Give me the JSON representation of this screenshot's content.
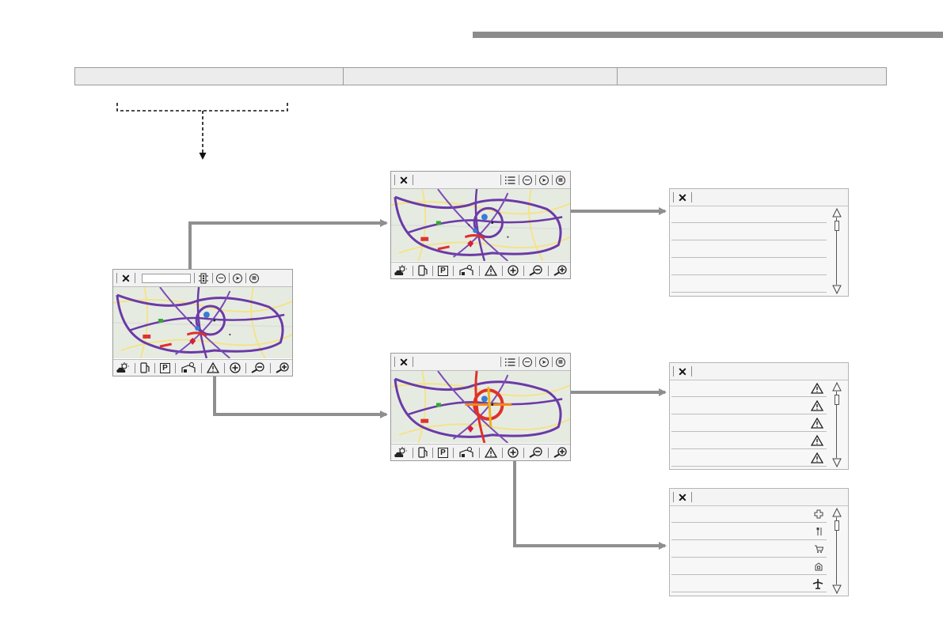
{
  "header": {
    "columns": [
      "",
      "",
      ""
    ]
  },
  "colors": {
    "connector": "#8f8f8f",
    "map_road": "#6b3aa6",
    "traffic": "#e0302a"
  },
  "main_screen": {
    "toolbar_icons": [
      "close-icon",
      "search-field",
      "traffic-light-icon",
      "route-icon",
      "compass-icon",
      "settings-icon"
    ],
    "bottom_icons": [
      "weather-icon",
      "fuel-icon",
      "parking-icon",
      "poi-icon",
      "warning-icon",
      "plus-circle-icon",
      "zoom-out-icon",
      "zoom-in-icon"
    ],
    "parking_label": "P"
  },
  "list_screen": {
    "toolbar_icons": [
      "close-icon",
      "list-icon",
      "route-icon",
      "compass-icon",
      "settings-icon"
    ],
    "parking_label": "P"
  },
  "list_panels": [
    {
      "name": "list-panel-1",
      "rows": [
        "",
        "",
        "",
        "",
        ""
      ],
      "row_icons": []
    },
    {
      "name": "list-panel-2",
      "rows": [
        "",
        "",
        "",
        "",
        ""
      ],
      "row_icons": [
        "warning-icon",
        "warning-icon",
        "warning-icon",
        "warning-icon",
        "warning-icon"
      ]
    },
    {
      "name": "list-panel-3",
      "rows": [
        "",
        "",
        "",
        "",
        ""
      ],
      "row_icons": [
        "hospital-icon",
        "restaurant-icon",
        "shop-icon",
        "building-icon",
        "airport-icon"
      ]
    }
  ]
}
